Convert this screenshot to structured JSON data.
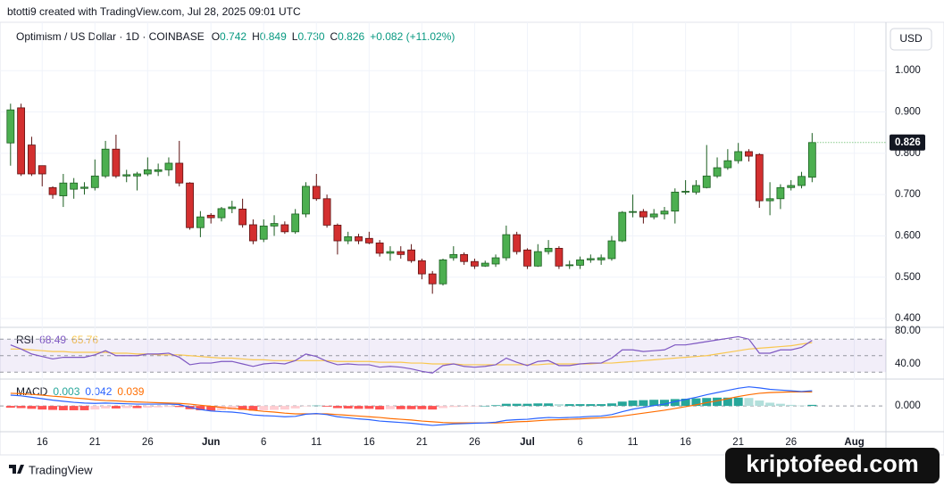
{
  "header": {
    "attribution": "btotti9 created with TradingView.com, Jul 28, 2025 09:01 UTC"
  },
  "chart_data": {
    "type": "candlestick",
    "title": "Optimism / US Dollar · 1D · COINBASE",
    "ohlc_legend": [
      {
        "label": "O",
        "value": "0.742"
      },
      {
        "label": "H",
        "value": "0.849"
      },
      {
        "label": "L",
        "value": "0.730"
      },
      {
        "label": "C",
        "value": "0.826"
      }
    ],
    "change": "+0.082 (+11.02%)",
    "currency": "USD",
    "up_color": "#4caf50",
    "down_color": "#d32f2f",
    "open": [
      0.825,
      0.91,
      0.82,
      0.77,
      0.717,
      0.697,
      0.713,
      0.715,
      0.717,
      0.745,
      0.81,
      0.745,
      0.745,
      0.75,
      0.756,
      0.76,
      0.776,
      0.728,
      0.62,
      0.65,
      0.644,
      0.666,
      0.665,
      0.627,
      0.592,
      0.624,
      0.627,
      0.61,
      0.653,
      0.72,
      0.69,
      0.626,
      0.588,
      0.598,
      0.594,
      0.583,
      0.558,
      0.562,
      0.566,
      0.54,
      0.508,
      0.484,
      0.547,
      0.555,
      0.538,
      0.527,
      0.532,
      0.547,
      0.603,
      0.566,
      0.527,
      0.562,
      0.57,
      0.529,
      0.529,
      0.542,
      0.542,
      0.545,
      0.588,
      0.657,
      0.659,
      0.646,
      0.653,
      0.66,
      0.706,
      0.706,
      0.717,
      0.745,
      0.765,
      0.782,
      0.804,
      0.797,
      0.685,
      0.69,
      0.717,
      0.722,
      0.742
    ],
    "high": [
      0.92,
      0.92,
      0.84,
      0.77,
      0.72,
      0.75,
      0.74,
      0.73,
      0.785,
      0.83,
      0.845,
      0.76,
      0.755,
      0.79,
      0.775,
      0.79,
      0.83,
      0.73,
      0.66,
      0.655,
      0.67,
      0.685,
      0.69,
      0.64,
      0.64,
      0.65,
      0.635,
      0.665,
      0.73,
      0.75,
      0.7,
      0.63,
      0.61,
      0.605,
      0.61,
      0.59,
      0.575,
      0.575,
      0.58,
      0.545,
      0.515,
      0.545,
      0.575,
      0.56,
      0.545,
      0.54,
      0.555,
      0.625,
      0.61,
      0.57,
      0.58,
      0.59,
      0.575,
      0.54,
      0.55,
      0.555,
      0.555,
      0.6,
      0.66,
      0.7,
      0.665,
      0.665,
      0.67,
      0.715,
      0.735,
      0.735,
      0.82,
      0.79,
      0.81,
      0.825,
      0.81,
      0.8,
      0.73,
      0.725,
      0.735,
      0.755,
      0.849
    ],
    "low": [
      0.77,
      0.745,
      0.745,
      0.72,
      0.69,
      0.67,
      0.69,
      0.7,
      0.71,
      0.74,
      0.74,
      0.73,
      0.71,
      0.745,
      0.745,
      0.745,
      0.72,
      0.615,
      0.597,
      0.63,
      0.635,
      0.655,
      0.62,
      0.58,
      0.585,
      0.6,
      0.605,
      0.605,
      0.645,
      0.685,
      0.62,
      0.555,
      0.58,
      0.58,
      0.58,
      0.55,
      0.54,
      0.545,
      0.535,
      0.495,
      0.46,
      0.48,
      0.54,
      0.53,
      0.52,
      0.525,
      0.525,
      0.54,
      0.555,
      0.52,
      0.525,
      0.555,
      0.52,
      0.52,
      0.52,
      0.535,
      0.53,
      0.54,
      0.585,
      0.645,
      0.63,
      0.64,
      0.64,
      0.63,
      0.7,
      0.7,
      0.715,
      0.74,
      0.76,
      0.775,
      0.78,
      0.668,
      0.65,
      0.665,
      0.71,
      0.715,
      0.73
    ],
    "close": [
      0.905,
      0.75,
      0.75,
      0.75,
      0.7,
      0.728,
      0.728,
      0.718,
      0.745,
      0.81,
      0.745,
      0.748,
      0.75,
      0.76,
      0.76,
      0.776,
      0.728,
      0.62,
      0.646,
      0.644,
      0.666,
      0.67,
      0.627,
      0.588,
      0.624,
      0.63,
      0.61,
      0.653,
      0.72,
      0.69,
      0.626,
      0.588,
      0.598,
      0.588,
      0.583,
      0.558,
      0.562,
      0.555,
      0.54,
      0.508,
      0.484,
      0.542,
      0.555,
      0.538,
      0.527,
      0.534,
      0.547,
      0.603,
      0.562,
      0.527,
      0.562,
      0.57,
      0.527,
      0.53,
      0.542,
      0.545,
      0.547,
      0.588,
      0.657,
      0.659,
      0.646,
      0.653,
      0.66,
      0.706,
      0.708,
      0.722,
      0.745,
      0.765,
      0.782,
      0.804,
      0.793,
      0.685,
      0.69,
      0.717,
      0.722,
      0.744,
      0.826
    ],
    "xlim": [
      -1,
      83
    ],
    "xticks": [
      {
        "value": 3,
        "label": "16"
      },
      {
        "value": 8,
        "label": "21"
      },
      {
        "value": 13,
        "label": "26"
      },
      {
        "value": 19,
        "label": "Jun"
      },
      {
        "value": 24,
        "label": "6"
      },
      {
        "value": 29,
        "label": "11"
      },
      {
        "value": 34,
        "label": "16"
      },
      {
        "value": 39,
        "label": "21"
      },
      {
        "value": 44,
        "label": "26"
      },
      {
        "value": 49,
        "label": "Jul"
      },
      {
        "value": 54,
        "label": "6"
      },
      {
        "value": 59,
        "label": "11"
      },
      {
        "value": 64,
        "label": "16"
      },
      {
        "value": 69,
        "label": "21"
      },
      {
        "value": 74,
        "label": "26"
      },
      {
        "value": 80,
        "label": "Aug"
      }
    ],
    "ylim": [
      0.383,
      1.117
    ],
    "yticks": [
      {
        "value": 0.4,
        "label": "0.400"
      },
      {
        "value": 0.5,
        "label": "0.500"
      },
      {
        "value": 0.6,
        "label": "0.600"
      },
      {
        "value": 0.7,
        "label": "0.700"
      },
      {
        "value": 0.8,
        "label": "0.800"
      },
      {
        "value": 0.9,
        "label": "0.900"
      },
      {
        "value": 1.0,
        "label": "1.000"
      }
    ],
    "rsi": {
      "name": "RSI",
      "color": "#7e57c2",
      "ma_color": "#f9c74f",
      "values": [
        63,
        58,
        52,
        49,
        46,
        48,
        48,
        48,
        51,
        56,
        50,
        50,
        50,
        52,
        52,
        53,
        48,
        39,
        41,
        41,
        43,
        43,
        40,
        37,
        40,
        41,
        40,
        44,
        52,
        49,
        43,
        39,
        40,
        39,
        39,
        36,
        37,
        36,
        34,
        31,
        29,
        38,
        40,
        37,
        36,
        37,
        39,
        47,
        42,
        38,
        43,
        44,
        38,
        38,
        40,
        41,
        41,
        47,
        57,
        57,
        55,
        56,
        57,
        63,
        63,
        65,
        67,
        69,
        71,
        73,
        70,
        53,
        53,
        57,
        57,
        60,
        68.49
      ],
      "ma": [
        58,
        58,
        57,
        56,
        55,
        55,
        54,
        54,
        54,
        54,
        53,
        53,
        52,
        52,
        51,
        51,
        51,
        50,
        49,
        48,
        47,
        47,
        46,
        45,
        45,
        44,
        44,
        44,
        44,
        44,
        44,
        43,
        43,
        43,
        43,
        42,
        42,
        42,
        41,
        41,
        40,
        40,
        40,
        39,
        39,
        39,
        39,
        39,
        39,
        39,
        39,
        40,
        40,
        40,
        40,
        40,
        41,
        41,
        42,
        43,
        44,
        45,
        46,
        47,
        48,
        49,
        50,
        52,
        54,
        56,
        58,
        59,
        60,
        61,
        62,
        64,
        65.76
      ],
      "ylim": [
        23.8,
        83.2
      ],
      "yticks": [
        {
          "value": 40,
          "label": "40.00"
        },
        {
          "value": 80,
          "label": "80.00"
        }
      ],
      "levels": [
        30,
        50,
        70
      ]
    },
    "macd": {
      "name": "MACD",
      "macd_color": "#2962ff",
      "signal_color": "#ff6d00",
      "histogram": [
        -0.005,
        -0.006,
        -0.008,
        -0.01,
        -0.011,
        -0.012,
        -0.012,
        -0.012,
        -0.01,
        -0.007,
        -0.007,
        -0.006,
        -0.006,
        -0.005,
        -0.004,
        -0.003,
        -0.003,
        -0.009,
        -0.012,
        -0.013,
        -0.012,
        -0.01,
        -0.011,
        -0.013,
        -0.012,
        -0.011,
        -0.01,
        -0.007,
        -0.001,
        0.001,
        -0.002,
        -0.006,
        -0.007,
        -0.008,
        -0.008,
        -0.01,
        -0.009,
        -0.009,
        -0.009,
        -0.009,
        -0.01,
        -0.006,
        -0.003,
        -0.002,
        -0.001,
        0.0,
        0.002,
        0.006,
        0.006,
        0.006,
        0.007,
        0.007,
        0.005,
        0.005,
        0.005,
        0.005,
        0.005,
        0.007,
        0.012,
        0.015,
        0.016,
        0.017,
        0.017,
        0.019,
        0.02,
        0.021,
        0.022,
        0.023,
        0.023,
        0.023,
        0.022,
        0.015,
        0.009,
        0.006,
        0.003,
        0.001,
        0.003
      ],
      "macd": [
        0.03,
        0.028,
        0.024,
        0.02,
        0.016,
        0.013,
        0.01,
        0.008,
        0.007,
        0.008,
        0.007,
        0.006,
        0.005,
        0.005,
        0.005,
        0.005,
        0.004,
        -0.004,
        -0.01,
        -0.014,
        -0.016,
        -0.017,
        -0.02,
        -0.025,
        -0.027,
        -0.028,
        -0.03,
        -0.029,
        -0.023,
        -0.021,
        -0.024,
        -0.03,
        -0.033,
        -0.036,
        -0.038,
        -0.042,
        -0.044,
        -0.046,
        -0.048,
        -0.051,
        -0.054,
        -0.052,
        -0.05,
        -0.049,
        -0.048,
        -0.047,
        -0.045,
        -0.04,
        -0.038,
        -0.037,
        -0.034,
        -0.032,
        -0.033,
        -0.032,
        -0.031,
        -0.029,
        -0.028,
        -0.024,
        -0.016,
        -0.009,
        -0.004,
        0.001,
        0.005,
        0.012,
        0.018,
        0.024,
        0.031,
        0.037,
        0.043,
        0.049,
        0.053,
        0.05,
        0.046,
        0.044,
        0.042,
        0.04,
        0.042
      ],
      "signal": [
        0.035,
        0.034,
        0.032,
        0.03,
        0.027,
        0.025,
        0.022,
        0.02,
        0.017,
        0.015,
        0.014,
        0.012,
        0.011,
        0.01,
        0.009,
        0.008,
        0.007,
        0.005,
        0.002,
        -0.001,
        -0.004,
        -0.007,
        -0.009,
        -0.012,
        -0.015,
        -0.017,
        -0.02,
        -0.022,
        -0.022,
        -0.022,
        -0.022,
        -0.024,
        -0.026,
        -0.028,
        -0.03,
        -0.032,
        -0.035,
        -0.037,
        -0.039,
        -0.042,
        -0.044,
        -0.046,
        -0.047,
        -0.047,
        -0.047,
        -0.047,
        -0.047,
        -0.046,
        -0.044,
        -0.043,
        -0.041,
        -0.039,
        -0.038,
        -0.037,
        -0.036,
        -0.034,
        -0.033,
        -0.031,
        -0.028,
        -0.024,
        -0.02,
        -0.016,
        -0.012,
        -0.007,
        -0.002,
        0.003,
        0.009,
        0.014,
        0.02,
        0.026,
        0.031,
        0.035,
        0.037,
        0.038,
        0.039,
        0.039,
        0.039
      ],
      "ylim": [
        -0.069,
        0.072
      ],
      "yticks": [
        {
          "value": 0,
          "label": "0.000"
        }
      ]
    }
  },
  "footer": {
    "logo": "TradingView",
    "watermark": "kriptofeed.com"
  }
}
